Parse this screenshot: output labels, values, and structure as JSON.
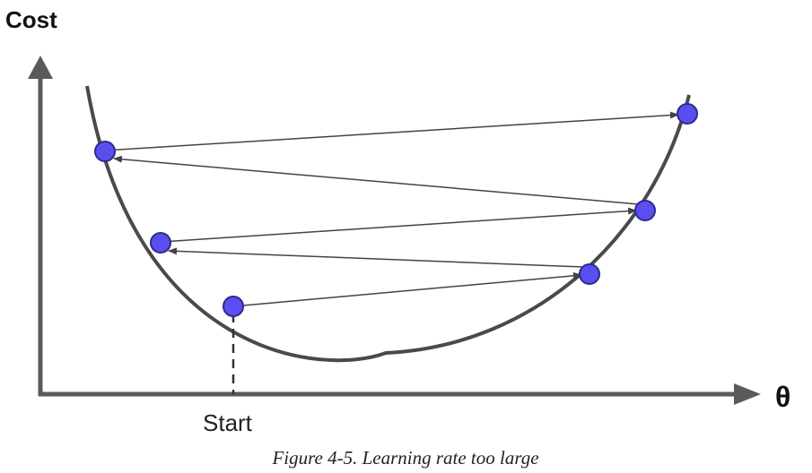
{
  "figure": {
    "y_axis_label": "Cost",
    "x_axis_label": "θ",
    "start_label": "Start",
    "caption": "Figure 4-5. Learning rate too large",
    "colors": {
      "axis": "#5a5a5a",
      "curve": "#4a4a4a",
      "point_fill": "#5b4ef0",
      "point_stroke": "#2d2a8c",
      "arrow": "#444444"
    }
  }
}
